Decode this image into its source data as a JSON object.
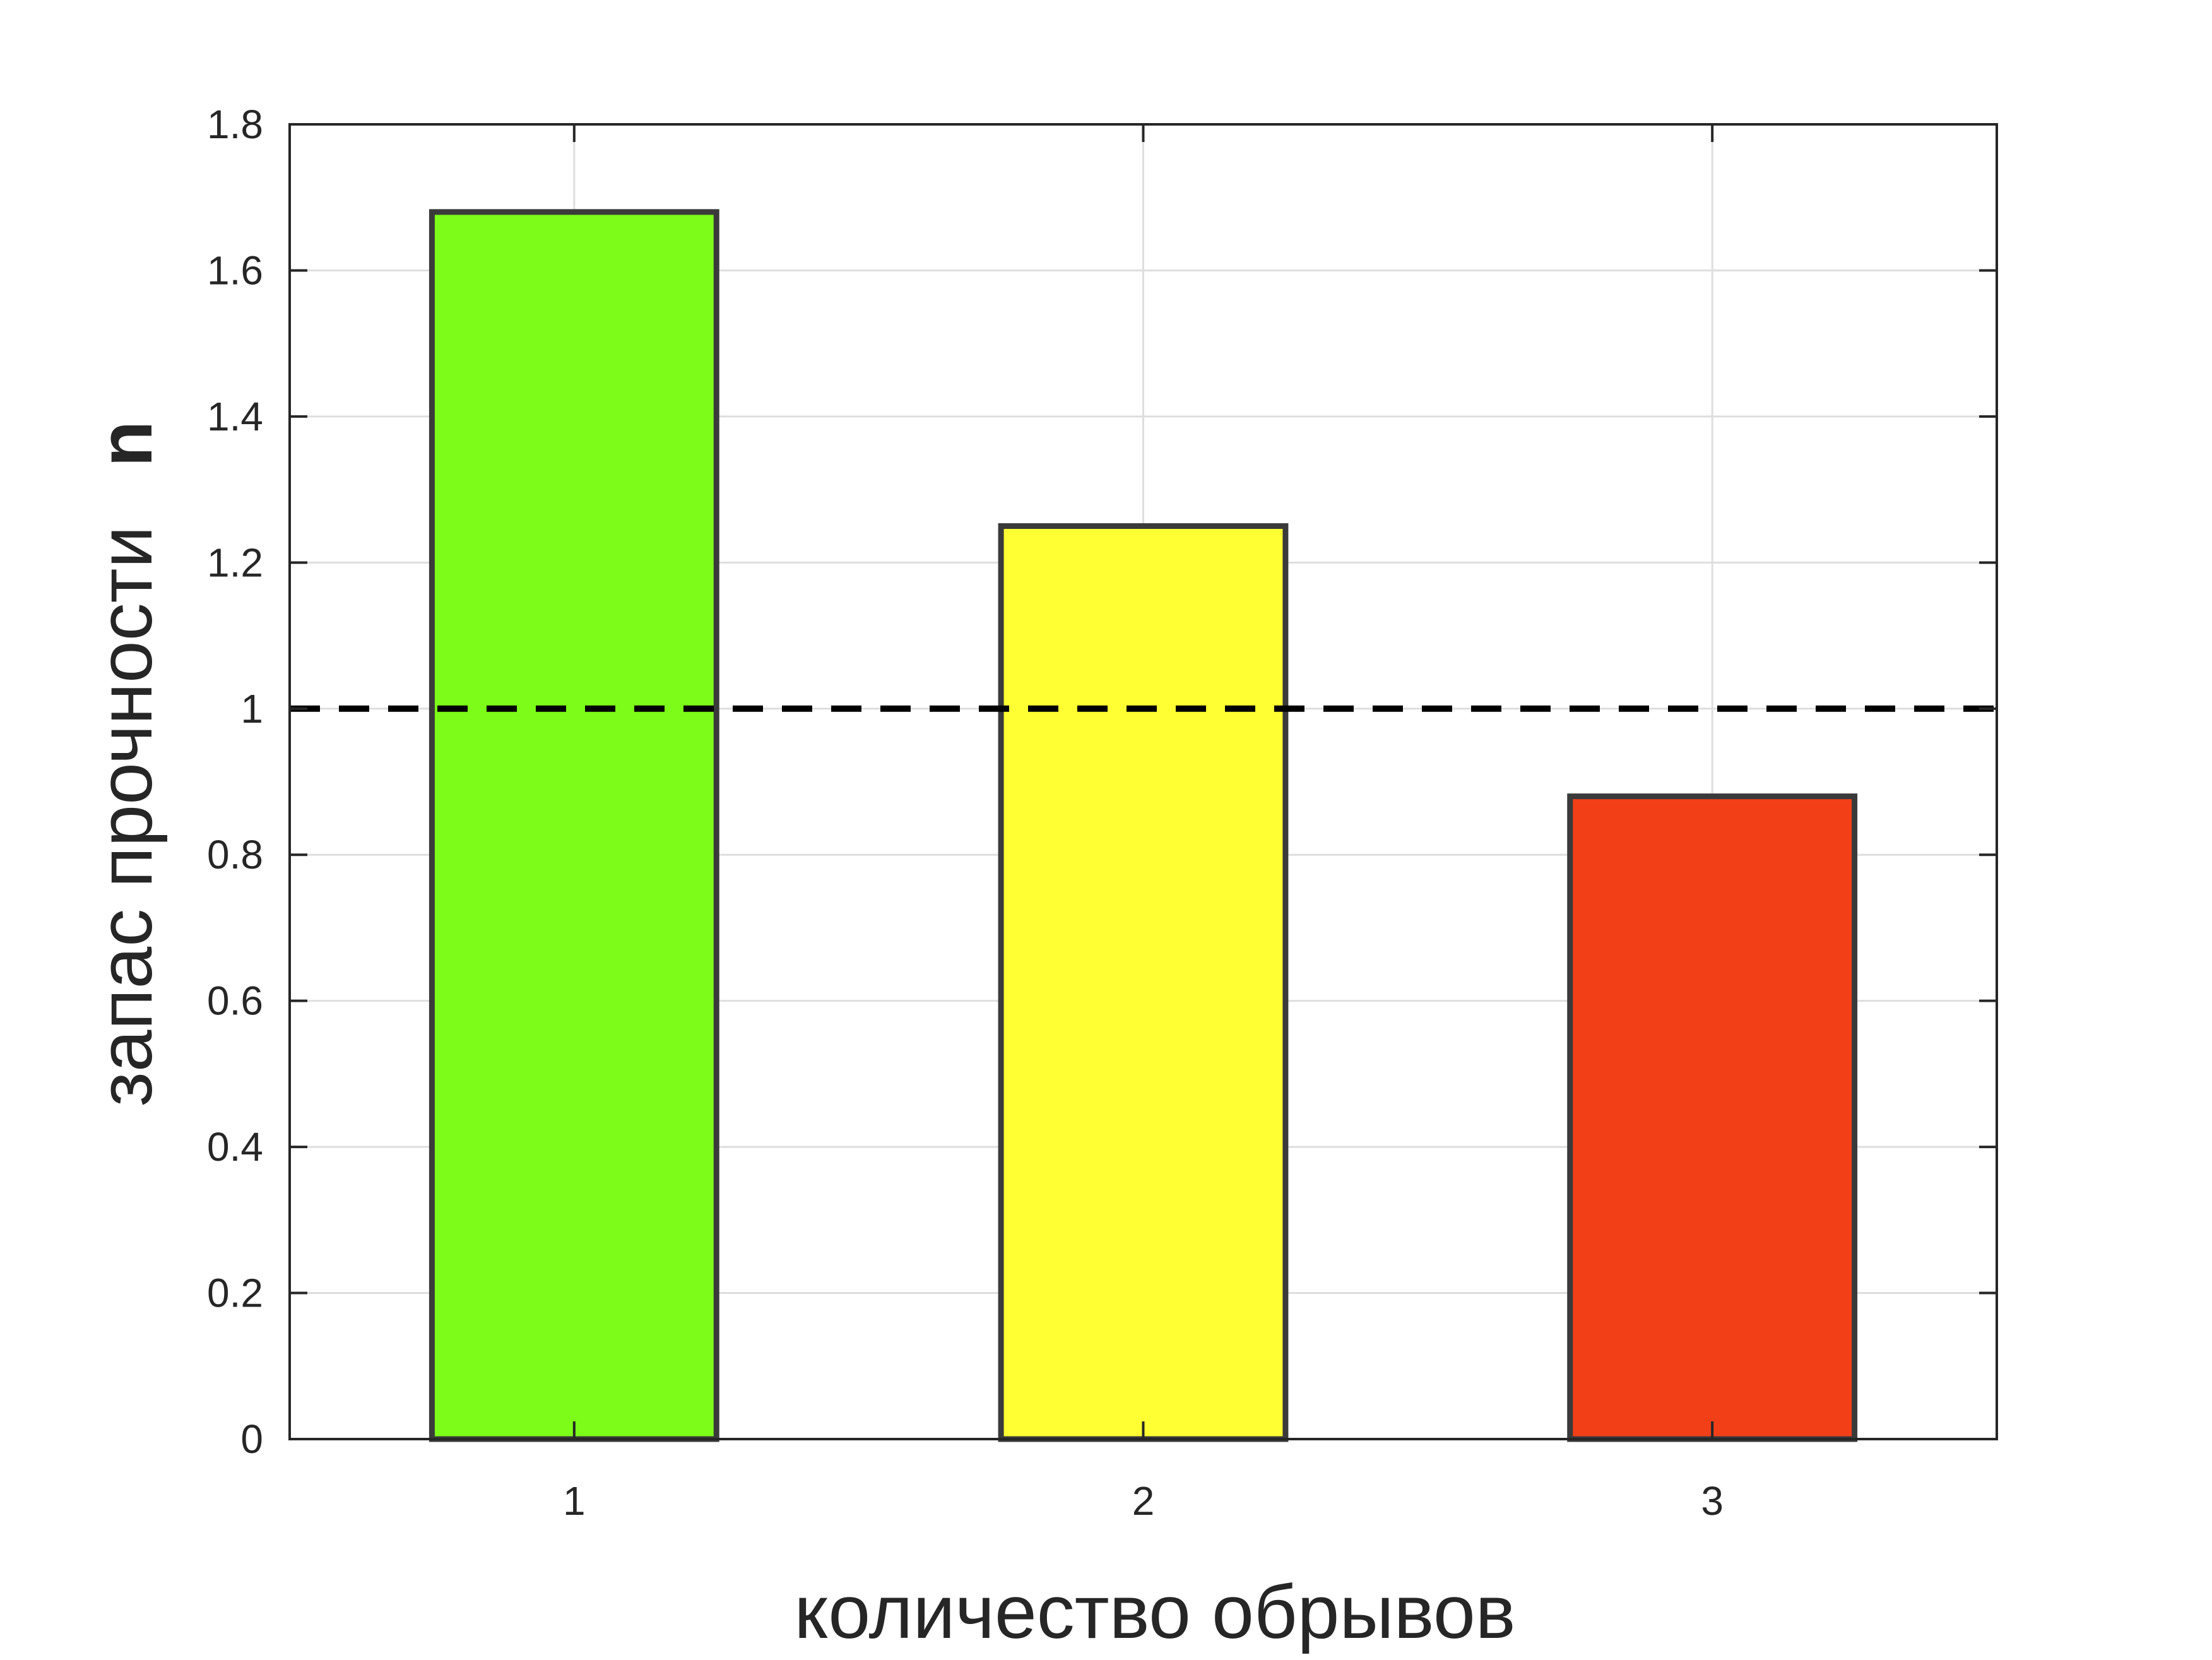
{
  "chart_data": {
    "type": "bar",
    "categories": [
      "1",
      "2",
      "3"
    ],
    "values": [
      1.68,
      1.25,
      0.88
    ],
    "bar_colors": [
      "#7CFC18",
      "#FFFF33",
      "#F23F18"
    ],
    "bar_edge_color": "#3a3a3a",
    "xlabel": "количество обрывов",
    "ylabel": "запас прочности",
    "ylabel_symbol": "n",
    "ylim": [
      0,
      1.8
    ],
    "yticks": [
      "0",
      "0.2",
      "0.4",
      "0.6",
      "0.8",
      "1",
      "1.2",
      "1.4",
      "1.6",
      "1.8"
    ],
    "ytick_values": [
      0,
      0.2,
      0.4,
      0.6,
      0.8,
      1.0,
      1.2,
      1.4,
      1.6,
      1.8
    ],
    "reference_line": {
      "value": 1.0,
      "style": "dashed",
      "color": "#000000"
    },
    "grid": true
  }
}
